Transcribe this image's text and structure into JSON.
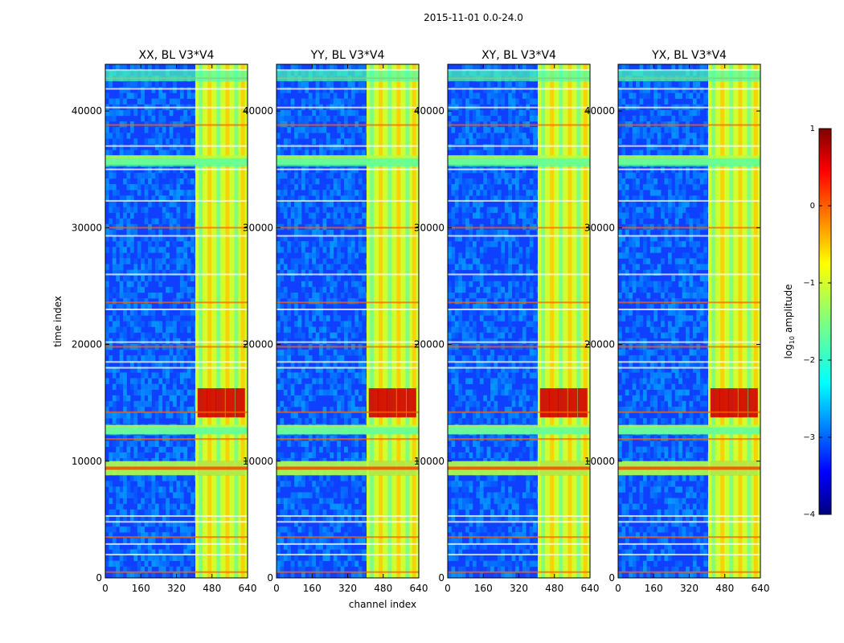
{
  "figure": {
    "suptitle": "2015-11-01 0.0-24.0",
    "xlabel": "channel index",
    "ylabel": "time index"
  },
  "chart_data": [
    {
      "type": "heatmap",
      "title": "XX, BL V3*V4",
      "xlim": [
        0,
        640
      ],
      "ylim": [
        0,
        44000
      ],
      "xticks": [
        0,
        160,
        320,
        480,
        640
      ],
      "yticks": [
        0,
        10000,
        20000,
        30000,
        40000
      ],
      "rfi_channel_bands": [
        [
          405,
          640
        ]
      ],
      "strong_time_rows": [
        9400,
        15000,
        12600,
        35600
      ]
    },
    {
      "type": "heatmap",
      "title": "YY, BL V3*V4",
      "xlim": [
        0,
        640
      ],
      "ylim": [
        0,
        44000
      ],
      "xticks": [
        0,
        160,
        320,
        480,
        640
      ],
      "yticks": [
        0,
        10000,
        20000,
        30000,
        40000
      ],
      "rfi_channel_bands": [
        [
          405,
          640
        ]
      ],
      "strong_time_rows": [
        9400,
        15000,
        12600,
        35600
      ]
    },
    {
      "type": "heatmap",
      "title": "XY, BL V3*V4",
      "xlim": [
        0,
        640
      ],
      "ylim": [
        0,
        44000
      ],
      "xticks": [
        0,
        160,
        320,
        480,
        640
      ],
      "yticks": [
        0,
        10000,
        20000,
        30000,
        40000
      ],
      "rfi_channel_bands": [
        [
          405,
          640
        ]
      ],
      "strong_time_rows": [
        9400,
        15000,
        12600,
        35600
      ]
    },
    {
      "type": "heatmap",
      "title": "YX, BL V3*V4",
      "xlim": [
        0,
        640
      ],
      "ylim": [
        0,
        44000
      ],
      "xticks": [
        0,
        160,
        320,
        480,
        640
      ],
      "yticks": [
        0,
        10000,
        20000,
        30000,
        40000
      ],
      "rfi_channel_bands": [
        [
          405,
          640
        ]
      ],
      "strong_time_rows": [
        9400,
        15000,
        12600,
        35600
      ]
    }
  ],
  "colorbar": {
    "label_prefix": "log",
    "label_sub": "10",
    "label_suffix": " amplitude",
    "range": [
      -4,
      1
    ],
    "ticks": [
      1,
      0,
      -1,
      -2,
      -3,
      -4
    ],
    "tick_labels": [
      "1",
      "0",
      "−1",
      "−2",
      "−3",
      "−4"
    ],
    "colormap": "jet",
    "colors": [
      "#00007f",
      "#0000ff",
      "#007fff",
      "#00ffff",
      "#7fff7f",
      "#ffff00",
      "#ff7f00",
      "#ff0000",
      "#7f0000"
    ]
  }
}
